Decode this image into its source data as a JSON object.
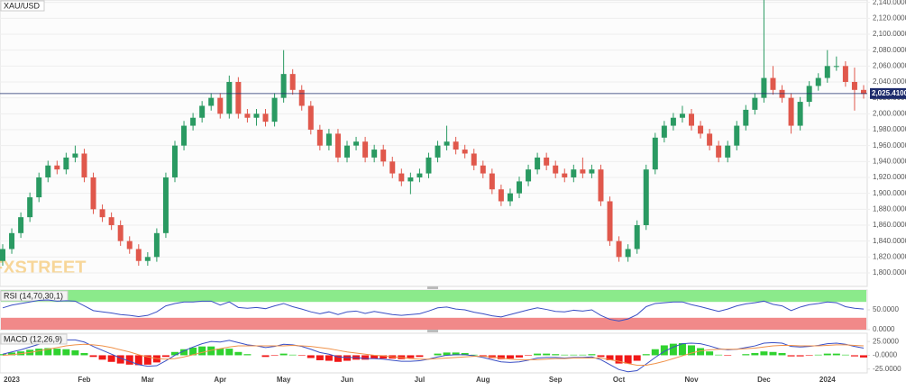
{
  "chart_data": [
    {
      "type": "candlestick",
      "title": "XAU/USD",
      "watermark": "FXSTREET",
      "categories": [
        null,
        "2023",
        null,
        null,
        null,
        null,
        null,
        null,
        null,
        "Feb",
        null,
        null,
        null,
        null,
        null,
        null,
        "Mar",
        null,
        null,
        null,
        null,
        null,
        null,
        null,
        "Apr",
        null,
        null,
        null,
        null,
        null,
        null,
        "May",
        null,
        null,
        null,
        null,
        null,
        null,
        "Jun",
        null,
        null,
        null,
        null,
        null,
        null,
        null,
        "Jul",
        null,
        null,
        null,
        null,
        null,
        null,
        "Aug",
        null,
        null,
        null,
        null,
        null,
        null,
        null,
        "Sep",
        null,
        null,
        null,
        null,
        null,
        null,
        "Oct",
        null,
        null,
        null,
        null,
        null,
        null,
        null,
        "Nov",
        null,
        null,
        null,
        null,
        null,
        null,
        null,
        "Dec",
        null,
        null,
        null,
        null,
        null,
        null,
        "2024",
        null,
        null,
        null,
        null
      ],
      "open": [
        1815,
        1830,
        1850,
        1870,
        1895,
        1920,
        1935,
        1930,
        1945,
        1950,
        1920,
        1880,
        1870,
        1860,
        1840,
        1830,
        1815,
        1820,
        1850,
        1920,
        1960,
        1985,
        1995,
        2010,
        2020,
        2000,
        2040,
        2000,
        1995,
        2000,
        1990,
        2020,
        2050,
        2030,
        2010,
        1980,
        1960,
        1975,
        1945,
        1960,
        1965,
        1945,
        1955,
        1940,
        1925,
        1915,
        1920,
        1925,
        1945,
        1960,
        1965,
        1955,
        1950,
        1935,
        1925,
        1905,
        1890,
        1900,
        1915,
        1930,
        1945,
        1935,
        1925,
        1920,
        1930,
        1925,
        1930,
        1890,
        1840,
        1820,
        1830,
        1860,
        1930,
        1970,
        1985,
        1995,
        2000,
        1985,
        1975,
        1960,
        1945,
        1960,
        1985,
        2005,
        2020,
        2045,
        2030,
        2020,
        1985,
        2015,
        2035,
        2045,
        2060,
        2060,
        2040,
        2030
      ],
      "high": [
        1836,
        1856,
        1876,
        1901,
        1926,
        1941,
        1941,
        1951,
        1960,
        1956,
        1926,
        1886,
        1876,
        1866,
        1846,
        1836,
        1826,
        1856,
        1926,
        1966,
        1991,
        2001,
        2016,
        2026,
        2026,
        2048,
        2046,
        2006,
        2006,
        2006,
        2026,
        2080,
        2056,
        2036,
        2016,
        1986,
        1981,
        1981,
        1966,
        1971,
        1971,
        1961,
        1961,
        1946,
        1931,
        1926,
        1931,
        1951,
        1966,
        1985,
        1971,
        1961,
        1956,
        1941,
        1931,
        1911,
        1906,
        1921,
        1936,
        1951,
        1951,
        1941,
        1931,
        1936,
        1945,
        1936,
        1936,
        1896,
        1846,
        1836,
        1866,
        1936,
        1976,
        1991,
        2001,
        2010,
        2006,
        1991,
        1981,
        1966,
        1966,
        1991,
        2011,
        2026,
        2145,
        2060,
        2036,
        2026,
        2021,
        2041,
        2051,
        2080,
        2072,
        2066,
        2058,
        2036
      ],
      "low": [
        1809,
        1824,
        1844,
        1864,
        1889,
        1914,
        1924,
        1924,
        1939,
        1914,
        1874,
        1864,
        1854,
        1834,
        1824,
        1809,
        1809,
        1814,
        1844,
        1914,
        1954,
        1979,
        1989,
        2004,
        1994,
        1994,
        1994,
        1989,
        1985,
        1984,
        1984,
        2014,
        2024,
        2004,
        1974,
        1954,
        1954,
        1939,
        1939,
        1954,
        1939,
        1939,
        1934,
        1919,
        1909,
        1899,
        1914,
        1919,
        1939,
        1954,
        1949,
        1944,
        1929,
        1919,
        1899,
        1884,
        1884,
        1894,
        1909,
        1924,
        1929,
        1919,
        1914,
        1914,
        1919,
        1919,
        1884,
        1834,
        1814,
        1814,
        1824,
        1854,
        1924,
        1964,
        1979,
        1989,
        1979,
        1969,
        1954,
        1939,
        1939,
        1954,
        1979,
        1999,
        2014,
        2024,
        2014,
        1975,
        1979,
        2009,
        2029,
        2039,
        2054,
        2034,
        2004,
        2019
      ],
      "close": [
        1830,
        1850,
        1870,
        1895,
        1920,
        1935,
        1930,
        1945,
        1950,
        1920,
        1880,
        1870,
        1860,
        1840,
        1830,
        1815,
        1820,
        1850,
        1920,
        1960,
        1985,
        1995,
        2010,
        2020,
        2000,
        2040,
        2000,
        1995,
        2000,
        1990,
        2020,
        2050,
        2030,
        2010,
        1980,
        1960,
        1975,
        1945,
        1960,
        1965,
        1945,
        1955,
        1940,
        1925,
        1915,
        1920,
        1925,
        1945,
        1960,
        1965,
        1955,
        1950,
        1935,
        1925,
        1905,
        1890,
        1900,
        1915,
        1930,
        1945,
        1935,
        1925,
        1920,
        1930,
        1925,
        1930,
        1890,
        1840,
        1820,
        1830,
        1860,
        1930,
        1970,
        1985,
        1995,
        2000,
        1985,
        1975,
        1960,
        1945,
        1960,
        1985,
        2005,
        2020,
        2045,
        2030,
        2020,
        1985,
        2015,
        2035,
        2045,
        2060,
        2060,
        2040,
        2030,
        2025
      ],
      "up_color": "#2a9a62",
      "down_color": "#e0584c",
      "last_price": {
        "value": 2025.41,
        "label": "2,025.4100"
      },
      "last_price_color": "#1d2b6b",
      "ylim": [
        1783,
        2143
      ],
      "grid": true,
      "yticks": [
        {
          "value": 1800,
          "label": "1,800.0000"
        },
        {
          "value": 1820,
          "label": "1,820.0000"
        },
        {
          "value": 1840,
          "label": "1,840.0000"
        },
        {
          "value": 1860,
          "label": "1,860.0000"
        },
        {
          "value": 1880,
          "label": "1,880.0000"
        },
        {
          "value": 1900,
          "label": "1,900.0000"
        },
        {
          "value": 1920,
          "label": "1,920.0000"
        },
        {
          "value": 1940,
          "label": "1,940.0000"
        },
        {
          "value": 1960,
          "label": "1,960.0000"
        },
        {
          "value": 1980,
          "label": "1,980.0000"
        },
        {
          "value": 2000,
          "label": "2,000.0000"
        },
        {
          "value": 2020,
          "label": "2,020.0000"
        },
        {
          "value": 2040,
          "label": "2,040.0000"
        },
        {
          "value": 2060,
          "label": "2,060.0000"
        },
        {
          "value": 2080,
          "label": "2,080.0000"
        },
        {
          "value": 2100,
          "label": "2,100.0000"
        },
        {
          "value": 2120,
          "label": "2,120.0000"
        },
        {
          "value": 2140,
          "label": "2,140.0000"
        }
      ]
    },
    {
      "type": "line",
      "title": "RSI (14,70,30,1)",
      "color": "#3a4fc4",
      "values": [
        55,
        62,
        66,
        70,
        74,
        75,
        72,
        73,
        72,
        60,
        48,
        45,
        42,
        38,
        36,
        33,
        36,
        45,
        60,
        66,
        70,
        70,
        72,
        72,
        62,
        70,
        56,
        54,
        56,
        53,
        60,
        66,
        58,
        52,
        45,
        40,
        45,
        38,
        45,
        47,
        41,
        46,
        42,
        38,
        36,
        38,
        40,
        47,
        55,
        57,
        52,
        50,
        44,
        40,
        35,
        32,
        38,
        44,
        50,
        55,
        51,
        46,
        45,
        49,
        47,
        50,
        36,
        26,
        22,
        27,
        38,
        58,
        66,
        68,
        70,
        70,
        63,
        58,
        52,
        46,
        52,
        60,
        65,
        68,
        72,
        64,
        60,
        48,
        57,
        63,
        66,
        70,
        68,
        58,
        54,
        52
      ],
      "upper_band": 70,
      "lower_band": 30,
      "upper_color": "#7ee87e",
      "lower_color": "#f07c7c",
      "ylim": [
        0,
        100
      ],
      "yticks": [
        {
          "value": 50,
          "label": "50.0000"
        },
        {
          "value": 0,
          "label": "0.0000"
        }
      ]
    },
    {
      "type": "macd",
      "title": "MACD (12,26,9)",
      "series": [
        {
          "color": "#3a4fc4",
          "values": [
            2,
            6,
            10,
            15,
            20,
            24,
            26,
            28,
            28,
            24,
            16,
            9,
            2,
            -5,
            -11,
            -17,
            -20,
            -19,
            -10,
            0,
            8,
            15,
            21,
            25,
            24,
            27,
            23,
            19,
            17,
            14,
            16,
            20,
            19,
            16,
            11,
            5,
            2,
            -3,
            -4,
            -4,
            -6,
            -6,
            -7,
            -9,
            -11,
            -11,
            -10,
            -7,
            -3,
            0,
            1,
            1,
            -1,
            -4,
            -8,
            -12,
            -13,
            -12,
            -9,
            -5,
            -4,
            -4,
            -5,
            -4,
            -4,
            -3,
            -8,
            -17,
            -26,
            -30,
            -28,
            -16,
            -4,
            7,
            15,
            21,
            22,
            21,
            17,
            12,
            10,
            11,
            14,
            17,
            22,
            23,
            22,
            16,
            15,
            16,
            18,
            21,
            22,
            20,
            16,
            13
          ]
        },
        {
          "color": "#f0924a",
          "values": [
            0,
            1,
            3,
            5,
            8,
            11,
            14,
            17,
            19,
            20,
            19,
            17,
            14,
            10,
            6,
            1,
            -3,
            -6,
            -7,
            -6,
            -3,
            1,
            5,
            9,
            12,
            15,
            17,
            17,
            17,
            17,
            17,
            17,
            18,
            17,
            16,
            14,
            12,
            9,
            6,
            4,
            2,
            0,
            -1,
            -3,
            -4,
            -6,
            -7,
            -7,
            -6,
            -5,
            -4,
            -3,
            -2,
            -2,
            -3,
            -5,
            -7,
            -8,
            -8,
            -8,
            -7,
            -6,
            -6,
            -5,
            -5,
            -5,
            -5,
            -8,
            -11,
            -15,
            -18,
            -18,
            -15,
            -11,
            -6,
            -1,
            4,
            8,
            10,
            11,
            11,
            11,
            12,
            13,
            15,
            17,
            18,
            18,
            17,
            17,
            17,
            18,
            19,
            19,
            18,
            17
          ]
        }
      ],
      "histogram": {
        "pos_color": "#2fd22f",
        "neg_color": "#f01818",
        "values": [
          2,
          5,
          7,
          10,
          12,
          13,
          12,
          11,
          9,
          4,
          -3,
          -8,
          -12,
          -15,
          -17,
          -18,
          -17,
          -13,
          -3,
          6,
          11,
          14,
          16,
          16,
          12,
          12,
          6,
          2,
          0,
          -3,
          -1,
          3,
          1,
          -1,
          -5,
          -9,
          -10,
          -12,
          -10,
          -8,
          -8,
          -6,
          -6,
          -6,
          -7,
          -5,
          -3,
          0,
          3,
          5,
          5,
          4,
          1,
          -2,
          -5,
          -7,
          -6,
          -4,
          -1,
          3,
          3,
          2,
          1,
          1,
          1,
          2,
          -3,
          -9,
          -15,
          -15,
          -10,
          2,
          11,
          18,
          21,
          22,
          18,
          13,
          7,
          1,
          -1,
          0,
          2,
          4,
          7,
          6,
          4,
          -2,
          -2,
          -1,
          1,
          3,
          3,
          1,
          -2,
          -4
        ]
      },
      "ylim": [
        -32,
        40
      ],
      "yticks": [
        {
          "value": 25,
          "label": "25.0000"
        },
        {
          "value": 0,
          "label": "-0.0000"
        },
        {
          "value": -25,
          "label": "-25.0000"
        }
      ]
    }
  ]
}
